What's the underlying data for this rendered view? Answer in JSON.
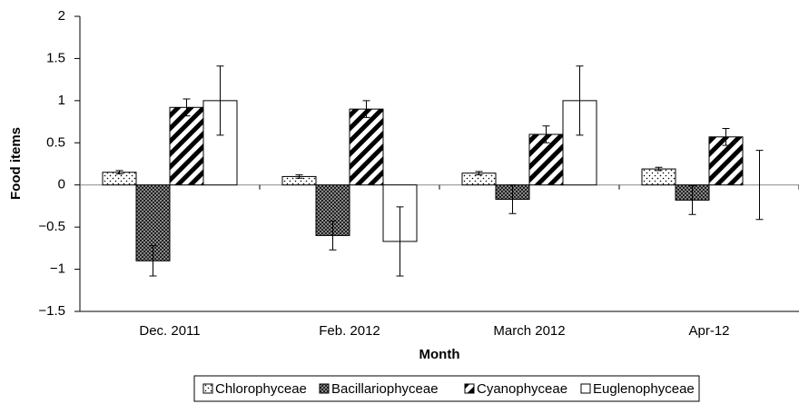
{
  "chart_data": {
    "type": "bar",
    "x_label": "Month",
    "y_label": "Food items",
    "categories": [
      "Dec. 2011",
      "Feb. 2012",
      "March 2012",
      "Apr-12"
    ],
    "series": [
      {
        "name": "Chlorophyceae",
        "color": "#ffffff",
        "pattern": "dots",
        "values": [
          0.15,
          0.1,
          0.14,
          0.19
        ],
        "errors": [
          0.02,
          0.02,
          0.02,
          0.02
        ]
      },
      {
        "name": "Bacillariophyceae",
        "color": "#444444",
        "pattern": "checker",
        "values": [
          -0.9,
          -0.6,
          -0.17,
          -0.18
        ],
        "errors": [
          0.18,
          0.17,
          0.17,
          0.17
        ]
      },
      {
        "name": "Cyanophyceae",
        "color": "#ffffff",
        "pattern": "stripes",
        "values": [
          0.92,
          0.9,
          0.6,
          0.57
        ],
        "errors": [
          0.1,
          0.1,
          0.1,
          0.1
        ]
      },
      {
        "name": "Euglenophyceae",
        "color": "#ffffff",
        "pattern": "none",
        "values": [
          1.0,
          -0.67,
          1.0,
          0
        ],
        "errors": [
          0.41,
          0.41,
          0.41,
          0.41
        ]
      }
    ],
    "ylim": [
      -1.5,
      2
    ],
    "yticks": [
      {
        "value": -1.5,
        "label": "−1.5"
      },
      {
        "value": -1,
        "label": "−1"
      },
      {
        "value": -0.5,
        "label": "−0.5"
      },
      0,
      0.5,
      1,
      1.5,
      2
    ],
    "legend": "bottom"
  }
}
